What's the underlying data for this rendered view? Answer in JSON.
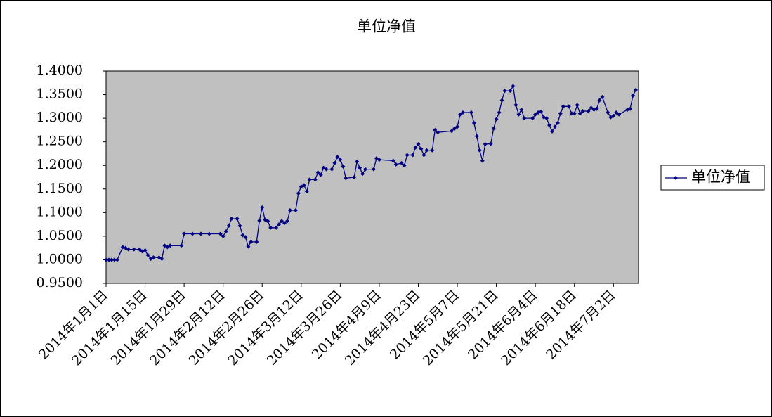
{
  "chart_data": {
    "type": "line",
    "title": "单位净值",
    "x": [
      "2014-01-01",
      "2014-01-02",
      "2014-01-03",
      "2014-01-04",
      "2014-01-05",
      "2014-01-07",
      "2014-01-08",
      "2014-01-09",
      "2014-01-11",
      "2014-01-13",
      "2014-01-14",
      "2014-01-15",
      "2014-01-16",
      "2014-01-17",
      "2014-01-18",
      "2014-01-20",
      "2014-01-21",
      "2014-01-22",
      "2014-01-23",
      "2014-01-24",
      "2014-01-28",
      "2014-01-29",
      "2014-02-01",
      "2014-02-04",
      "2014-02-07",
      "2014-02-11",
      "2014-02-12",
      "2014-02-13",
      "2014-02-14",
      "2014-02-15",
      "2014-02-17",
      "2014-02-18",
      "2014-02-19",
      "2014-02-20",
      "2014-02-21",
      "2014-02-22",
      "2014-02-24",
      "2014-02-25",
      "2014-02-26",
      "2014-02-27",
      "2014-02-28",
      "2014-03-01",
      "2014-03-03",
      "2014-03-04",
      "2014-03-05",
      "2014-03-06",
      "2014-03-07",
      "2014-03-08",
      "2014-03-10",
      "2014-03-11",
      "2014-03-12",
      "2014-03-13",
      "2014-03-14",
      "2014-03-15",
      "2014-03-17",
      "2014-03-18",
      "2014-03-19",
      "2014-03-20",
      "2014-03-21",
      "2014-03-23",
      "2014-03-24",
      "2014-03-25",
      "2014-03-26",
      "2014-03-27",
      "2014-03-28",
      "2014-03-31",
      "2014-04-01",
      "2014-04-02",
      "2014-04-03",
      "2014-04-04",
      "2014-04-07",
      "2014-04-08",
      "2014-04-09",
      "2014-04-14",
      "2014-04-15",
      "2014-04-17",
      "2014-04-18",
      "2014-04-19",
      "2014-04-21",
      "2014-04-22",
      "2014-04-23",
      "2014-04-24",
      "2014-04-25",
      "2014-04-26",
      "2014-04-28",
      "2014-04-29",
      "2014-04-30",
      "2014-05-05",
      "2014-05-06",
      "2014-05-07",
      "2014-05-08",
      "2014-05-09",
      "2014-05-12",
      "2014-05-13",
      "2014-05-14",
      "2014-05-15",
      "2014-05-16",
      "2014-05-17",
      "2014-05-19",
      "2014-05-20",
      "2014-05-21",
      "2014-05-22",
      "2014-05-23",
      "2014-05-24",
      "2014-05-26",
      "2014-05-27",
      "2014-05-28",
      "2014-05-29",
      "2014-05-30",
      "2014-05-31",
      "2014-06-03",
      "2014-06-04",
      "2014-06-05",
      "2014-06-06",
      "2014-06-07",
      "2014-06-08",
      "2014-06-09",
      "2014-06-10",
      "2014-06-11",
      "2014-06-12",
      "2014-06-13",
      "2014-06-14",
      "2014-06-16",
      "2014-06-17",
      "2014-06-18",
      "2014-06-19",
      "2014-06-20",
      "2014-06-21",
      "2014-06-23",
      "2014-06-24",
      "2014-06-25",
      "2014-06-26",
      "2014-06-27",
      "2014-06-28",
      "2014-06-30",
      "2014-07-01",
      "2014-07-02",
      "2014-07-03",
      "2014-07-04",
      "2014-07-07",
      "2014-07-08",
      "2014-07-09",
      "2014-07-10"
    ],
    "series": [
      {
        "name": "单位净值",
        "color": "#000080",
        "values": [
          1.0,
          1.0,
          1.0,
          1.0,
          1.0,
          1.027,
          1.025,
          1.022,
          1.022,
          1.022,
          1.018,
          1.02,
          1.01,
          1.002,
          1.005,
          1.005,
          1.002,
          1.03,
          1.027,
          1.03,
          1.03,
          1.055,
          1.055,
          1.055,
          1.055,
          1.055,
          1.05,
          1.06,
          1.072,
          1.087,
          1.087,
          1.072,
          1.052,
          1.048,
          1.028,
          1.038,
          1.038,
          1.083,
          1.111,
          1.085,
          1.082,
          1.068,
          1.068,
          1.075,
          1.082,
          1.078,
          1.082,
          1.105,
          1.105,
          1.141,
          1.155,
          1.158,
          1.145,
          1.17,
          1.17,
          1.185,
          1.18,
          1.195,
          1.192,
          1.192,
          1.205,
          1.218,
          1.212,
          1.198,
          1.173,
          1.175,
          1.208,
          1.195,
          1.182,
          1.192,
          1.192,
          1.215,
          1.212,
          1.21,
          1.202,
          1.205,
          1.2,
          1.222,
          1.222,
          1.238,
          1.245,
          1.235,
          1.222,
          1.232,
          1.232,
          1.275,
          1.27,
          1.273,
          1.278,
          1.282,
          1.308,
          1.312,
          1.312,
          1.29,
          1.262,
          1.232,
          1.21,
          1.245,
          1.246,
          1.278,
          1.298,
          1.312,
          1.338,
          1.358,
          1.358,
          1.368,
          1.328,
          1.308,
          1.318,
          1.3,
          1.3,
          1.308,
          1.312,
          1.314,
          1.302,
          1.3,
          1.285,
          1.272,
          1.282,
          1.29,
          1.31,
          1.325,
          1.325,
          1.31,
          1.31,
          1.328,
          1.31,
          1.315,
          1.315,
          1.322,
          1.318,
          1.32,
          1.338,
          1.345,
          1.312,
          1.302,
          1.305,
          1.312,
          1.308,
          1.318,
          1.32,
          1.348,
          1.36
        ]
      }
    ],
    "xlim": [
      "2014-01-01",
      "2014-07-11"
    ],
    "xticks": [
      {
        "value": "2014-01-01",
        "label": "2014年1月1日"
      },
      {
        "value": "2014-01-15",
        "label": "2014年1月15日"
      },
      {
        "value": "2014-01-29",
        "label": "2014年1月29日"
      },
      {
        "value": "2014-02-12",
        "label": "2014年2月12日"
      },
      {
        "value": "2014-02-26",
        "label": "2014年2月26日"
      },
      {
        "value": "2014-03-12",
        "label": "2014年3月12日"
      },
      {
        "value": "2014-03-26",
        "label": "2014年3月26日"
      },
      {
        "value": "2014-04-09",
        "label": "2014年4月9日"
      },
      {
        "value": "2014-04-23",
        "label": "2014年4月23日"
      },
      {
        "value": "2014-05-07",
        "label": "2014年5月7日"
      },
      {
        "value": "2014-05-21",
        "label": "2014年5月21日"
      },
      {
        "value": "2014-06-04",
        "label": "2014年6月4日"
      },
      {
        "value": "2014-06-18",
        "label": "2014年6月18日"
      },
      {
        "value": "2014-07-02",
        "label": "2014年7月2日"
      }
    ],
    "ylim": [
      0.95,
      1.4
    ],
    "yticks": [
      {
        "value": 0.95,
        "label": "0.9500"
      },
      {
        "value": 1.0,
        "label": "1.0000"
      },
      {
        "value": 1.05,
        "label": "1.0500"
      },
      {
        "value": 1.1,
        "label": "1.1000"
      },
      {
        "value": 1.15,
        "label": "1.1500"
      },
      {
        "value": 1.2,
        "label": "1.2000"
      },
      {
        "value": 1.25,
        "label": "1.2500"
      },
      {
        "value": 1.3,
        "label": "1.3000"
      },
      {
        "value": 1.35,
        "label": "1.3500"
      },
      {
        "value": 1.4,
        "label": "1.4000"
      }
    ],
    "legend": "right",
    "plot_background": "#c0c0c0"
  }
}
